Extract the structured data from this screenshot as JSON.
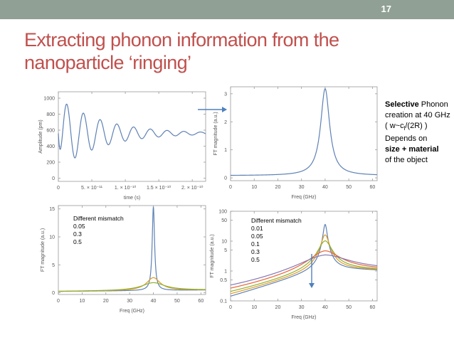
{
  "slide": {
    "number": "17",
    "title_line1": "Extracting phonon information from the",
    "title_line2": "nanoparticle ‘ringing’"
  },
  "note": {
    "selective": "Selective",
    "phonon": " Phonon",
    "line2": "creation at 40 GHz",
    "line3_prefix": "( w~c",
    "line3_sub": "l",
    "line3_suffix": "/(2R) )",
    "line4": "Depends on",
    "line5": "size + material",
    "line6": "of the object"
  },
  "colors": {
    "topbar": "#90a094",
    "title": "#c0504d",
    "series_blue": "#5e81b5",
    "series_orange": "#e19c24",
    "series_olive": "#8fb032",
    "series_red": "#eb6235",
    "series_purple": "#8778b3",
    "arrow_blue": "#4f81bd"
  },
  "chart_data": [
    {
      "type": "line",
      "panel": "time-domain",
      "xlabel": "time (s)",
      "ylabel": "Amplitude (pm)",
      "xlim": [
        0,
        2.2e-10
      ],
      "ylim": [
        -40,
        1080
      ],
      "xtick_labels": [
        "0",
        "5. × 10⁻¹¹",
        "1. × 10⁻¹⁰",
        "1.5 × 10⁻¹⁰",
        "2. × 10⁻¹⁰"
      ],
      "xticks": [
        0,
        5e-11,
        1e-10,
        1.5e-10,
        2e-10
      ],
      "yticks": [
        0,
        200,
        400,
        600,
        800,
        1000
      ],
      "ytick_labels": [
        "0",
        "200",
        "400",
        "600",
        "800",
        "1000"
      ],
      "signal": {
        "mean": 560,
        "amplitude": 450,
        "frequency_ghz": 40,
        "decay_time_s": 6.5e-11,
        "rise_time_s": 3e-12
      }
    },
    {
      "type": "line",
      "panel": "spectrum",
      "xlabel": "Freq (GHz)",
      "ylabel": "FT magnitude (a.u.)",
      "xlim": [
        0,
        62
      ],
      "ylim": [
        -0.1,
        3.25
      ],
      "xticks": [
        0,
        10,
        20,
        30,
        40,
        50,
        60
      ],
      "xtick_labels": [
        "0",
        "10",
        "20",
        "30",
        "40",
        "50",
        "60"
      ],
      "yticks": [
        0,
        1,
        2,
        3
      ],
      "ytick_labels": [
        "0",
        "1",
        "2",
        "3"
      ],
      "peak": {
        "center_ghz": 40,
        "height": 3.1,
        "width_ghz": 2.3,
        "baseline": 0.08
      }
    },
    {
      "type": "line",
      "panel": "mismatch-linear",
      "xlabel": "Freq (GHz)",
      "ylabel": "FT magnitude (a.u.)",
      "legend_title": "Different mismatch",
      "legend": [
        "0.05",
        "0.3",
        "0.5"
      ],
      "xlim": [
        0,
        62
      ],
      "ylim": [
        -0.3,
        15.6
      ],
      "xticks": [
        0,
        10,
        20,
        30,
        40,
        50,
        60
      ],
      "xtick_labels": [
        "0",
        "10",
        "20",
        "30",
        "40",
        "50",
        "60"
      ],
      "yticks": [
        0,
        5,
        10,
        15
      ],
      "ytick_labels": [
        "0",
        "5",
        "10",
        "15"
      ],
      "series": [
        {
          "mismatch": 0.05,
          "height": 15.0,
          "width_ghz": 0.6,
          "baseline": 0.25,
          "color": "#5e81b5"
        },
        {
          "mismatch": 0.3,
          "height": 2.3,
          "width_ghz": 3.5,
          "baseline": 0.25,
          "color": "#e19c24"
        },
        {
          "mismatch": 0.5,
          "height": 1.4,
          "width_ghz": 6.0,
          "baseline": 0.25,
          "color": "#8fb032"
        }
      ]
    },
    {
      "type": "line",
      "panel": "mismatch-log",
      "xlabel": "Freq (GHz)",
      "ylabel": "FT magnitude (a.u.)",
      "legend_title": "Different mismatch",
      "legend": [
        "0.01",
        "0.05",
        "0.1",
        "0.3",
        "0.5"
      ],
      "yscale": "log",
      "xlim": [
        0,
        62
      ],
      "ylim": [
        0.1,
        100
      ],
      "xticks": [
        0,
        10,
        20,
        30,
        40,
        50,
        60
      ],
      "xtick_labels": [
        "0",
        "10",
        "20",
        "30",
        "40",
        "50",
        "60"
      ],
      "yticks": [
        0.1,
        0.5,
        1,
        5,
        10,
        50,
        100
      ],
      "ytick_labels": [
        "0.1",
        "0.5",
        "1",
        "5",
        "10",
        "50",
        "100"
      ],
      "series": [
        {
          "mismatch": 0.01,
          "height": 35,
          "width_ghz": 0.8,
          "color": "#5e81b5"
        },
        {
          "mismatch": 0.05,
          "height": 15,
          "width_ghz": 1.6,
          "color": "#e19c24"
        },
        {
          "mismatch": 0.1,
          "height": 9,
          "width_ghz": 2.6,
          "color": "#8fb032"
        },
        {
          "mismatch": 0.3,
          "height": 3.5,
          "width_ghz": 6,
          "color": "#eb6235"
        },
        {
          "mismatch": 0.5,
          "height": 2.2,
          "width_ghz": 10,
          "color": "#8778b3"
        }
      ]
    }
  ]
}
